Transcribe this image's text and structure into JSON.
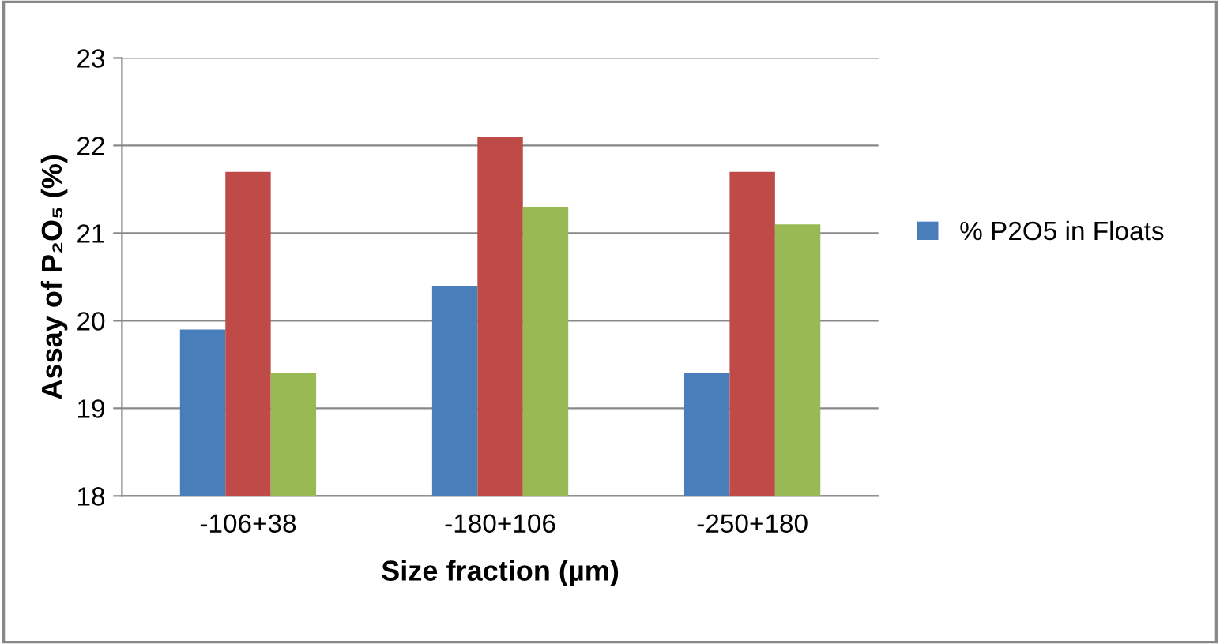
{
  "chart_data": {
    "type": "bar",
    "xlabel": "Size fraction (µm)",
    "ylabel": "Assay of P₂O₅ (%)",
    "categories": [
      "-106+38",
      "-180+106",
      "-250+180"
    ],
    "series": [
      {
        "name": "% P2O5 in Floats",
        "color": "#4a7ebb",
        "values": [
          19.9,
          20.4,
          19.4
        ]
      },
      {
        "color": "#be4b48",
        "values": [
          21.7,
          22.1,
          21.7
        ]
      },
      {
        "color": "#98b954",
        "values": [
          19.4,
          21.3,
          21.1
        ]
      }
    ],
    "ylim": [
      18,
      23
    ],
    "yticks": [
      18,
      19,
      20,
      21,
      22,
      23
    ],
    "grid": "y",
    "legend": "right"
  }
}
